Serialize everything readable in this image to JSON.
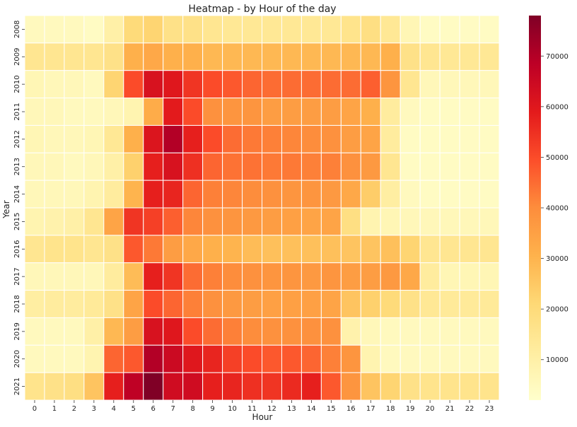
{
  "chart_data": {
    "type": "heatmap",
    "title": "Heatmap - by Hour of the day",
    "xlabel": "Hour",
    "ylabel": "Year",
    "x_categories": [
      "0",
      "1",
      "2",
      "3",
      "4",
      "5",
      "6",
      "7",
      "8",
      "9",
      "10",
      "11",
      "12",
      "13",
      "14",
      "15",
      "16",
      "17",
      "18",
      "19",
      "20",
      "21",
      "22",
      "23"
    ],
    "y_categories": [
      "2008",
      "2009",
      "2010",
      "2011",
      "2012",
      "2013",
      "2014",
      "2015",
      "2016",
      "2017",
      "2018",
      "2019",
      "2020",
      "2021"
    ],
    "values": [
      [
        5000,
        5000,
        5000,
        4000,
        10000,
        20000,
        22000,
        17000,
        17000,
        15000,
        14000,
        14000,
        14000,
        14000,
        14000,
        14000,
        16000,
        18000,
        14000,
        7000,
        4000,
        4000,
        4000,
        4000
      ],
      [
        15000,
        15000,
        15000,
        15000,
        17000,
        31000,
        33000,
        31000,
        31000,
        29000,
        29000,
        29000,
        29000,
        29000,
        29000,
        29000,
        29000,
        29000,
        31000,
        17000,
        15000,
        14000,
        14000,
        14000
      ],
      [
        7000,
        6000,
        6000,
        5000,
        22000,
        50000,
        62000,
        60000,
        54000,
        50000,
        48000,
        46000,
        45000,
        45000,
        45000,
        45000,
        45000,
        47000,
        38000,
        15000,
        6000,
        6000,
        6000,
        6000
      ],
      [
        6000,
        6000,
        5000,
        5000,
        6000,
        8000,
        32000,
        59000,
        50000,
        39000,
        38000,
        38000,
        36000,
        36000,
        36000,
        36000,
        34000,
        31000,
        12000,
        5000,
        4000,
        4000,
        4000,
        4000
      ],
      [
        7000,
        6000,
        6000,
        7000,
        14000,
        31000,
        61000,
        70000,
        58000,
        50000,
        45000,
        43000,
        42000,
        41000,
        40000,
        39000,
        36000,
        34000,
        12000,
        4000,
        4000,
        4000,
        4000,
        4000
      ],
      [
        6000,
        6000,
        5000,
        6000,
        10000,
        23000,
        58000,
        62000,
        55000,
        46000,
        44000,
        44000,
        43000,
        43000,
        42000,
        42000,
        39000,
        37000,
        15000,
        4000,
        4000,
        4000,
        4000,
        4000
      ],
      [
        6000,
        6000,
        6000,
        8000,
        12000,
        30000,
        58000,
        57000,
        46000,
        42000,
        41000,
        40000,
        39000,
        38000,
        38000,
        37000,
        33000,
        24000,
        11000,
        5000,
        4000,
        4000,
        4000,
        4000
      ],
      [
        8000,
        9000,
        10000,
        15000,
        34000,
        54000,
        52000,
        47000,
        41000,
        39000,
        38000,
        37000,
        36000,
        35000,
        34000,
        34000,
        18000,
        8000,
        7000,
        6000,
        6000,
        6000,
        6000,
        6000
      ],
      [
        15000,
        16000,
        16000,
        15000,
        17000,
        48000,
        43000,
        36000,
        33000,
        31000,
        30000,
        28000,
        27000,
        27000,
        27000,
        27000,
        26000,
        26000,
        27000,
        22000,
        15000,
        15000,
        15000,
        15000
      ],
      [
        6000,
        6000,
        6000,
        6000,
        12000,
        28000,
        58000,
        54000,
        45000,
        42000,
        40000,
        39000,
        38000,
        38000,
        37000,
        38000,
        36000,
        36000,
        37000,
        33000,
        12000,
        7000,
        7000,
        7000
      ],
      [
        11000,
        12000,
        12000,
        13000,
        17000,
        34000,
        50000,
        46000,
        42000,
        39000,
        37000,
        36000,
        35000,
        35000,
        35000,
        34000,
        26000,
        23000,
        20000,
        17000,
        14000,
        13000,
        13000,
        13000
      ],
      [
        5000,
        5000,
        5000,
        10000,
        29000,
        36000,
        62000,
        60000,
        50000,
        45000,
        42000,
        40000,
        39000,
        39000,
        39000,
        39000,
        9000,
        6000,
        5000,
        5000,
        5000,
        5000,
        5000,
        5000
      ],
      [
        5000,
        5000,
        5000,
        8000,
        46000,
        48000,
        70000,
        65000,
        60000,
        57000,
        52000,
        50000,
        48000,
        48000,
        46000,
        42000,
        38000,
        8000,
        5000,
        5000,
        5000,
        5000,
        5000,
        5000
      ],
      [
        16000,
        17000,
        18000,
        26000,
        58000,
        68000,
        78000,
        64000,
        64000,
        58000,
        57000,
        55000,
        54000,
        56000,
        58000,
        48000,
        38000,
        26000,
        22000,
        17000,
        16000,
        16000,
        16000,
        16000
      ]
    ],
    "vmin": 2000,
    "vmax": 78000,
    "colormap": "YlOrRd",
    "colorbar_ticks": [
      10000,
      20000,
      30000,
      40000,
      50000,
      60000,
      70000
    ],
    "grid": true,
    "cell_border_color": "#ffffff"
  }
}
